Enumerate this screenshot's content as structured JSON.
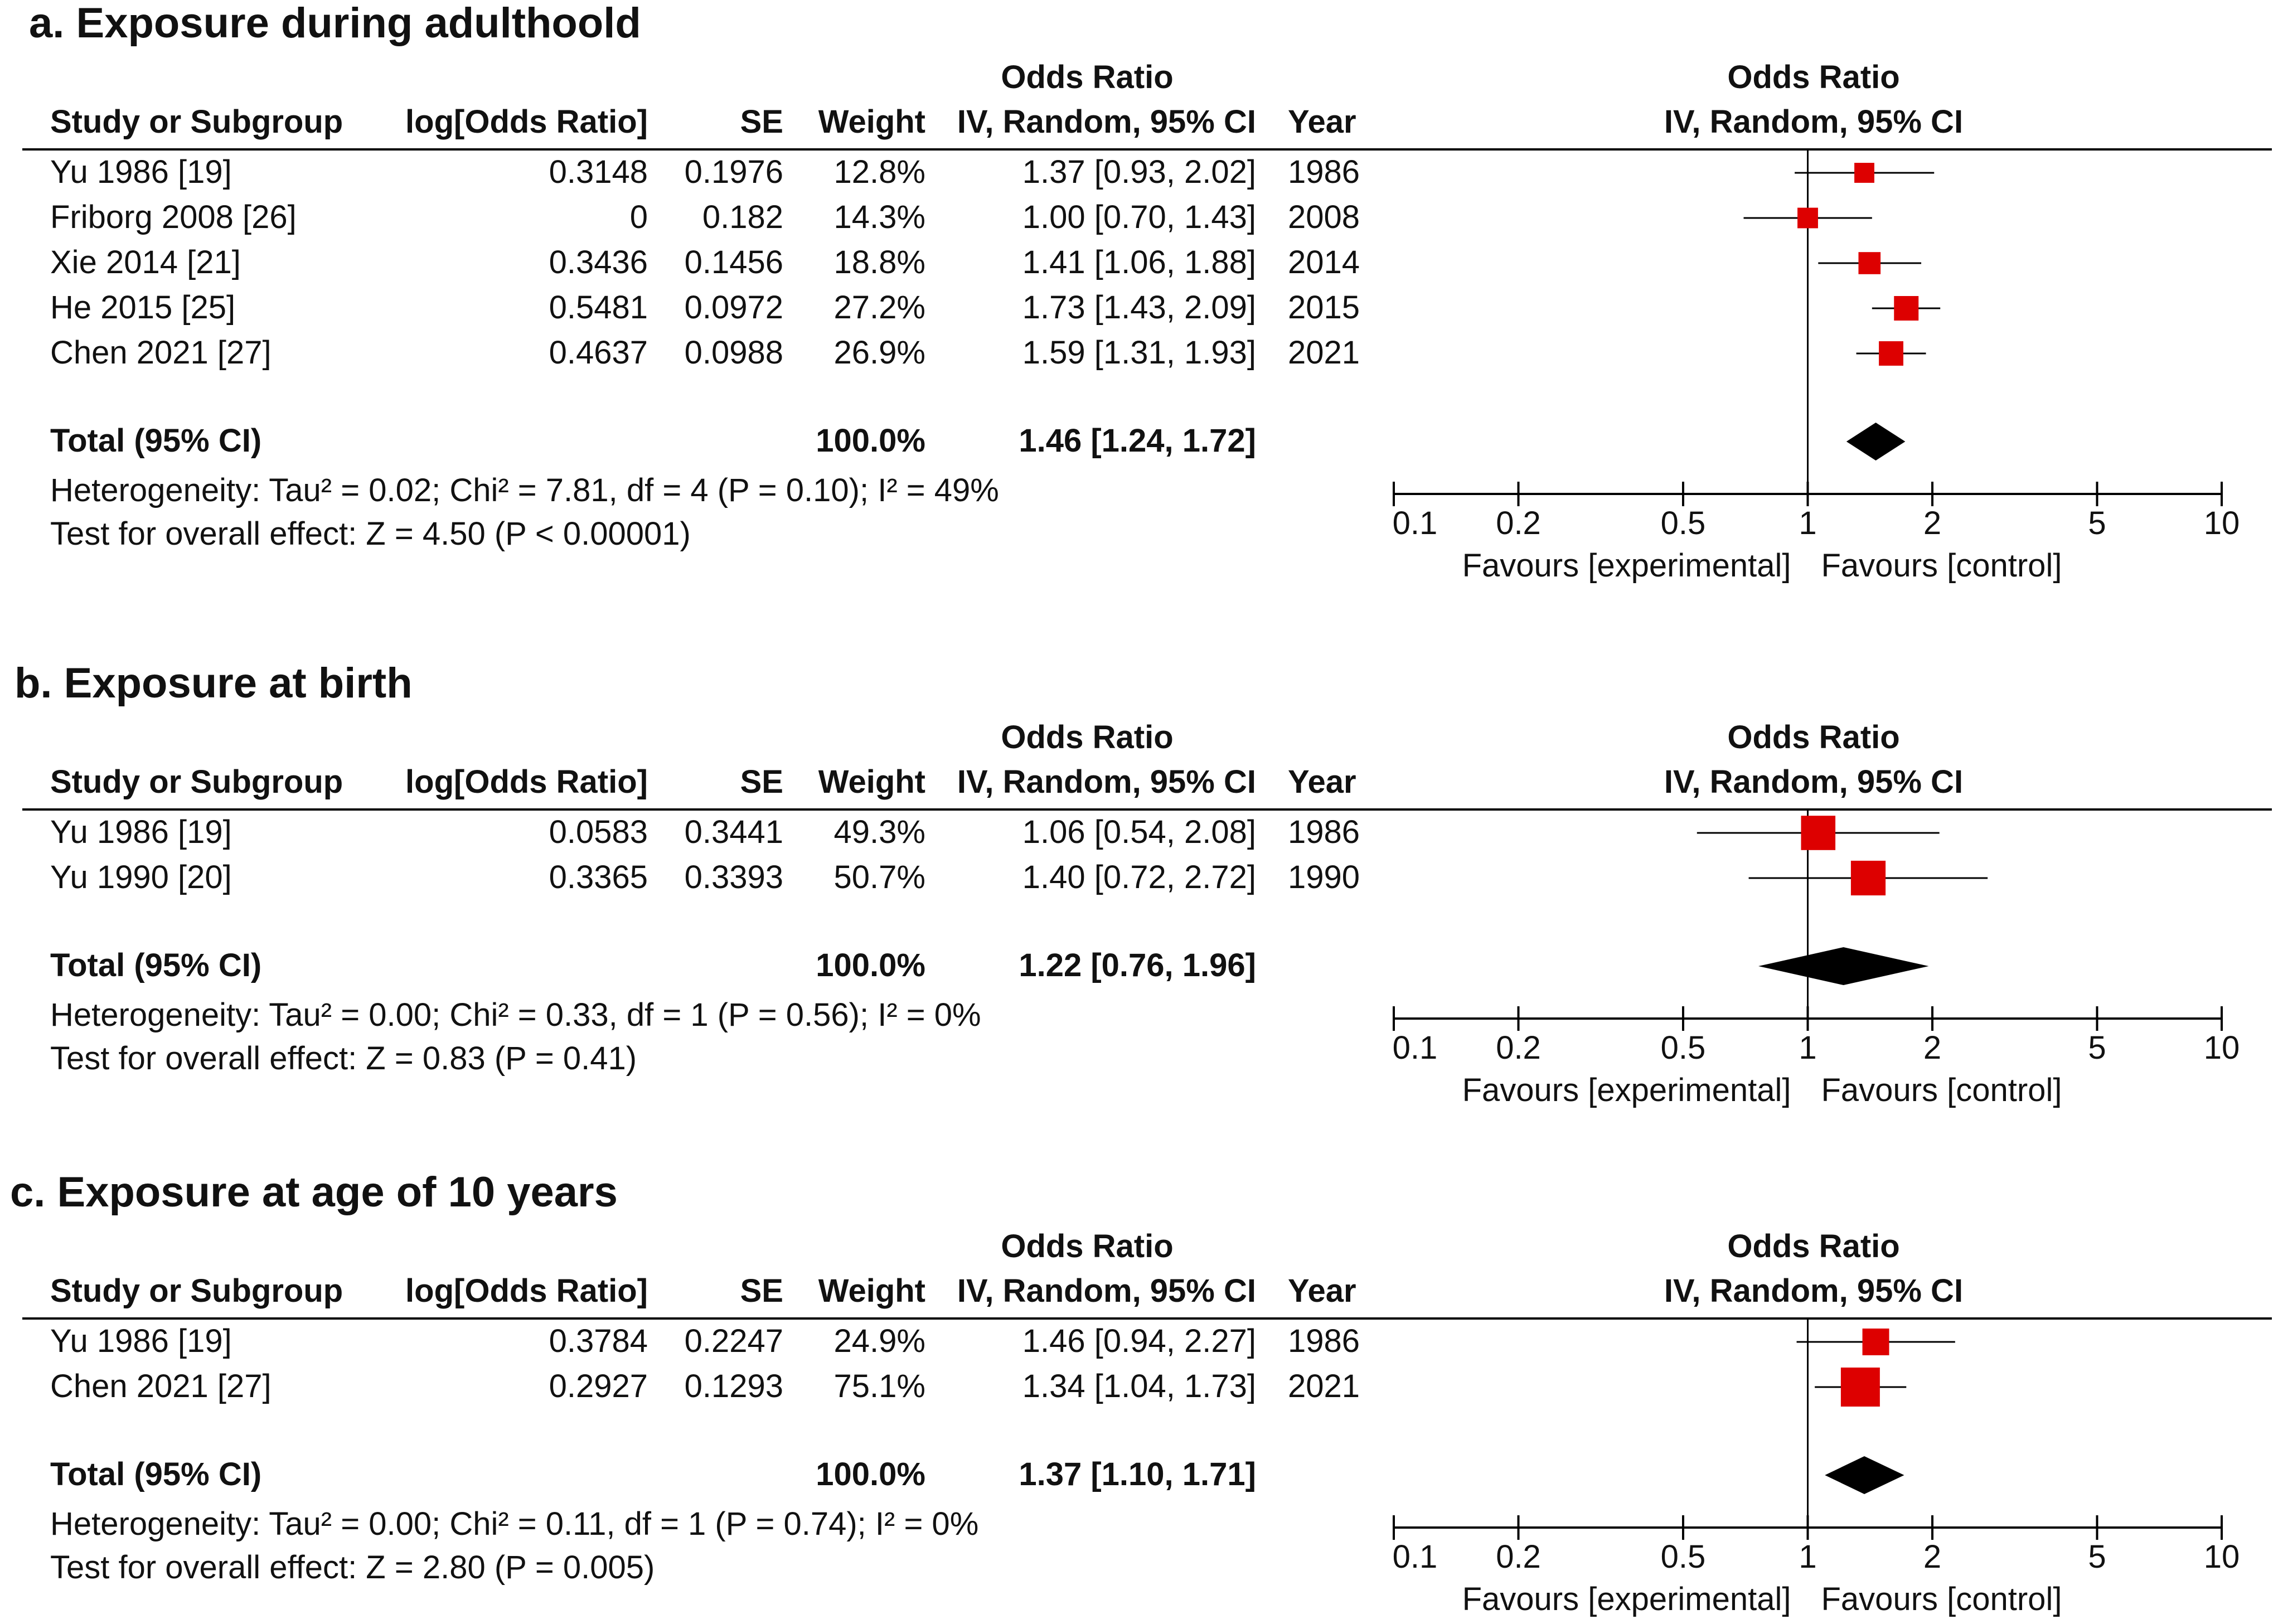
{
  "colors": {
    "study_marker": "#dd0000",
    "total_diamond": "#000000",
    "text": "#111111",
    "rule": "#000000"
  },
  "column_headers": {
    "study": "Study or Subgroup",
    "log_or": "log[Odds Ratio]",
    "se": "SE",
    "weight": "Weight",
    "or_group": "Odds Ratio",
    "or_method": "IV, Random, 95% CI",
    "year": "Year",
    "plot_group": "Odds Ratio",
    "plot_method": "IV, Random, 95% CI"
  },
  "axis": {
    "type": "log",
    "range": [
      0.1,
      10
    ],
    "ticks": [
      0.1,
      0.2,
      0.5,
      1,
      2,
      5,
      10
    ],
    "tick_labels": [
      "0.1",
      "0.2",
      "0.5",
      "1",
      "2",
      "5",
      "10"
    ],
    "favours_left": "Favours [experimental]",
    "favours_right": "Favours [control]"
  },
  "chart_data": [
    {
      "type": "forest",
      "title": "a. Exposure during adulthoold",
      "studies": [
        {
          "name": "Yu 1986 [19]",
          "log_or": "0.3148",
          "se": "0.1976",
          "weight": "12.8%",
          "ci_text": "1.37 [0.93, 2.02]",
          "year": "1986",
          "or": 1.37,
          "lo": 0.93,
          "hi": 2.02,
          "w": 12.8
        },
        {
          "name": "Friborg 2008 [26]",
          "log_or": "0",
          "se": "0.182",
          "weight": "14.3%",
          "ci_text": "1.00 [0.70, 1.43]",
          "year": "2008",
          "or": 1.0,
          "lo": 0.7,
          "hi": 1.43,
          "w": 14.3
        },
        {
          "name": "Xie 2014 [21]",
          "log_or": "0.3436",
          "se": "0.1456",
          "weight": "18.8%",
          "ci_text": "1.41 [1.06, 1.88]",
          "year": "2014",
          "or": 1.41,
          "lo": 1.06,
          "hi": 1.88,
          "w": 18.8
        },
        {
          "name": "He 2015 [25]",
          "log_or": "0.5481",
          "se": "0.0972",
          "weight": "27.2%",
          "ci_text": "1.73 [1.43, 2.09]",
          "year": "2015",
          "or": 1.73,
          "lo": 1.43,
          "hi": 2.09,
          "w": 27.2
        },
        {
          "name": "Chen 2021 [27]",
          "log_or": "0.4637",
          "se": "0.0988",
          "weight": "26.9%",
          "ci_text": "1.59 [1.31, 1.93]",
          "year": "2021",
          "or": 1.59,
          "lo": 1.31,
          "hi": 1.93,
          "w": 26.9
        }
      ],
      "total": {
        "label": "Total (95% CI)",
        "weight": "100.0%",
        "ci_text": "1.46 [1.24, 1.72]",
        "or": 1.46,
        "lo": 1.24,
        "hi": 1.72
      },
      "heterogeneity": "Heterogeneity: Tau² = 0.02; Chi² = 7.81, df = 4 (P = 0.10); I² = 49%",
      "overall_effect": "Test for overall effect: Z = 4.50 (P < 0.00001)"
    },
    {
      "type": "forest",
      "title": "b. Exposure at birth",
      "studies": [
        {
          "name": "Yu 1986 [19]",
          "log_or": "0.0583",
          "se": "0.3441",
          "weight": "49.3%",
          "ci_text": "1.06 [0.54, 2.08]",
          "year": "1986",
          "or": 1.06,
          "lo": 0.54,
          "hi": 2.08,
          "w": 49.3
        },
        {
          "name": "Yu 1990 [20]",
          "log_or": "0.3365",
          "se": "0.3393",
          "weight": "50.7%",
          "ci_text": "1.40 [0.72, 2.72]",
          "year": "1990",
          "or": 1.4,
          "lo": 0.72,
          "hi": 2.72,
          "w": 50.7
        }
      ],
      "total": {
        "label": "Total (95% CI)",
        "weight": "100.0%",
        "ci_text": "1.22 [0.76, 1.96]",
        "or": 1.22,
        "lo": 0.76,
        "hi": 1.96
      },
      "heterogeneity": "Heterogeneity: Tau² = 0.00; Chi² = 0.33, df = 1 (P = 0.56); I² = 0%",
      "overall_effect": "Test for overall effect: Z = 0.83 (P = 0.41)"
    },
    {
      "type": "forest",
      "title": "c. Exposure at age of 10 years",
      "studies": [
        {
          "name": "Yu 1986 [19]",
          "log_or": "0.3784",
          "se": "0.2247",
          "weight": "24.9%",
          "ci_text": "1.46 [0.94, 2.27]",
          "year": "1986",
          "or": 1.46,
          "lo": 0.94,
          "hi": 2.27,
          "w": 24.9
        },
        {
          "name": "Chen 2021 [27]",
          "log_or": "0.2927",
          "se": "0.1293",
          "weight": "75.1%",
          "ci_text": "1.34 [1.04, 1.73]",
          "year": "2021",
          "or": 1.34,
          "lo": 1.04,
          "hi": 1.73,
          "w": 75.1
        }
      ],
      "total": {
        "label": "Total (95% CI)",
        "weight": "100.0%",
        "ci_text": "1.37 [1.10, 1.71]",
        "or": 1.37,
        "lo": 1.1,
        "hi": 1.71
      },
      "heterogeneity": "Heterogeneity: Tau² = 0.00; Chi² = 0.11, df = 1 (P = 0.74); I² = 0%",
      "overall_effect": "Test for overall effect: Z = 2.80 (P = 0.005)"
    }
  ]
}
